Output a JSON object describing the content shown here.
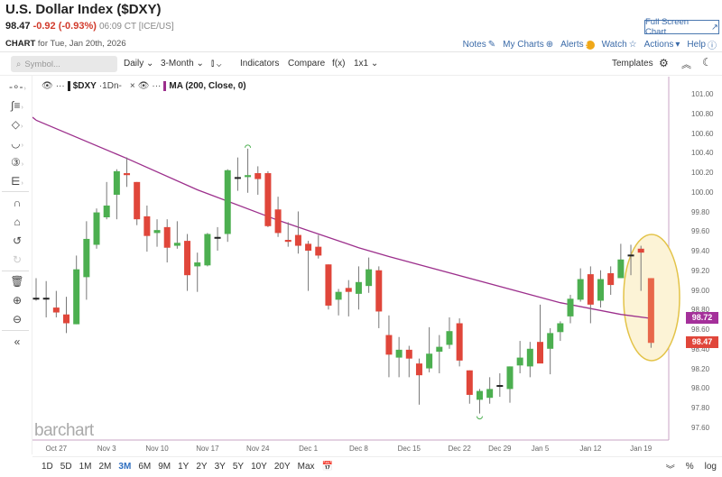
{
  "header": {
    "title": "U.S. Dollar Index ($DXY)",
    "last": "98.47",
    "change": "-0.92 (-0.93%)",
    "time": "06:09 CT [ICE/US]",
    "chart_label": "CHART",
    "chart_date": "for Tue, Jan 20th, 2026",
    "fullscreen_label": "Full Screen Chart",
    "links": {
      "notes": "Notes",
      "my_charts": "My Charts",
      "alerts": "Alerts",
      "watch": "Watch",
      "actions": "Actions",
      "help": "Help"
    }
  },
  "toolbar": {
    "symbol_placeholder": "Symbol...",
    "interval": "Daily",
    "period": "3-Month",
    "indicators": "Indicators",
    "compare": "Compare",
    "fx": "f(x)",
    "layout": "1x1",
    "templates": "Templates"
  },
  "legend": {
    "symbol": "$DXY",
    "symbol_suffix": "·1Dn-",
    "ma": "MA (200, Close, 0)"
  },
  "colors": {
    "up": "#4caf50",
    "down": "#e0463a",
    "doji": "#222222",
    "ma": "#9c2f8c",
    "highlight_fill": "#fcf3d6",
    "highlight_stroke": "#e3c348",
    "last_badge": "#e0463a",
    "ma_badge": "#a4309a"
  },
  "chart_data": {
    "type": "candlestick",
    "ylim": [
      97.5,
      101.2
    ],
    "y_ticks": [
      "101.00",
      "100.80",
      "100.60",
      "100.40",
      "100.20",
      "100.00",
      "99.80",
      "99.60",
      "99.40",
      "99.20",
      "99.00",
      "98.80",
      "98.60",
      "98.40",
      "98.20",
      "98.00",
      "97.80",
      "97.60"
    ],
    "x_ticks": [
      {
        "label": "Oct 27",
        "index": 2
      },
      {
        "label": "Nov 3",
        "index": 7
      },
      {
        "label": "Nov 10",
        "index": 12
      },
      {
        "label": "Nov 17",
        "index": 17
      },
      {
        "label": "Nov 24",
        "index": 22
      },
      {
        "label": "Dec 1",
        "index": 27
      },
      {
        "label": "Dec 8",
        "index": 32
      },
      {
        "label": "Dec 15",
        "index": 37
      },
      {
        "label": "Dec 22",
        "index": 42
      },
      {
        "label": "Dec 29",
        "index": 46
      },
      {
        "label": "Jan 5",
        "index": 50
      },
      {
        "label": "Jan 12",
        "index": 55
      },
      {
        "label": "Jan 19",
        "index": 60
      }
    ],
    "candles": [
      [
        98.93,
        99.13,
        98.9,
        98.93
      ],
      [
        98.93,
        99.1,
        98.73,
        98.93
      ],
      [
        98.83,
        99.0,
        98.73,
        98.78
      ],
      [
        98.76,
        98.94,
        98.57,
        98.67
      ],
      [
        98.66,
        99.36,
        98.66,
        99.22
      ],
      [
        99.14,
        99.71,
        98.91,
        99.53
      ],
      [
        99.47,
        99.84,
        99.43,
        99.8
      ],
      [
        99.75,
        100.11,
        99.73,
        99.87
      ],
      [
        99.98,
        100.24,
        99.73,
        100.22
      ],
      [
        100.2,
        100.36,
        100.06,
        100.18
      ],
      [
        100.11,
        100.11,
        99.67,
        99.73
      ],
      [
        99.76,
        99.87,
        99.4,
        99.56
      ],
      [
        99.59,
        99.73,
        99.45,
        99.62
      ],
      [
        99.65,
        99.73,
        99.29,
        99.44
      ],
      [
        99.46,
        99.71,
        99.43,
        99.49
      ],
      [
        99.51,
        99.58,
        99.0,
        99.16
      ],
      [
        99.25,
        99.39,
        98.99,
        99.29
      ],
      [
        99.26,
        99.59,
        99.25,
        99.58
      ],
      [
        99.55,
        99.65,
        99.41,
        99.55
      ],
      [
        99.58,
        100.24,
        99.5,
        100.23
      ],
      [
        100.16,
        100.36,
        100.02,
        100.16
      ],
      [
        100.16,
        100.45,
        100.0,
        100.18
      ],
      [
        100.2,
        100.27,
        99.98,
        100.14
      ],
      [
        100.2,
        100.22,
        99.65,
        99.66
      ],
      [
        99.83,
        99.96,
        99.55,
        99.59
      ],
      [
        99.52,
        99.7,
        99.45,
        99.5
      ],
      [
        99.57,
        99.81,
        99.38,
        99.46
      ],
      [
        99.48,
        99.51,
        99.0,
        99.41
      ],
      [
        99.45,
        99.57,
        99.33,
        99.36
      ],
      [
        99.27,
        99.27,
        98.81,
        98.85
      ],
      [
        98.91,
        99.02,
        98.75,
        98.99
      ],
      [
        99.03,
        99.11,
        98.74,
        98.99
      ],
      [
        98.97,
        99.25,
        98.81,
        99.09
      ],
      [
        99.05,
        99.34,
        98.98,
        99.22
      ],
      [
        99.21,
        99.25,
        98.62,
        98.79
      ],
      [
        98.55,
        98.75,
        98.12,
        98.35
      ],
      [
        98.32,
        98.53,
        98.12,
        98.4
      ],
      [
        98.4,
        98.44,
        98.12,
        98.31
      ],
      [
        98.26,
        98.31,
        97.84,
        98.14
      ],
      [
        98.21,
        98.63,
        98.17,
        98.36
      ],
      [
        98.38,
        98.55,
        98.16,
        98.43
      ],
      [
        98.45,
        98.73,
        98.41,
        98.59
      ],
      [
        98.67,
        98.72,
        98.23,
        98.29
      ],
      [
        98.19,
        98.19,
        97.85,
        97.94
      ],
      [
        97.89,
        98.0,
        97.75,
        97.98
      ],
      [
        97.91,
        98.12,
        97.85,
        98.0
      ],
      [
        98.04,
        98.16,
        97.92,
        98.04
      ],
      [
        98.0,
        98.23,
        97.86,
        98.23
      ],
      [
        98.24,
        98.49,
        98.16,
        98.32
      ],
      [
        98.23,
        98.48,
        98.12,
        98.41
      ],
      [
        98.48,
        98.86,
        98.27,
        98.26
      ],
      [
        98.41,
        98.62,
        98.15,
        98.57
      ],
      [
        98.58,
        98.69,
        98.49,
        98.67
      ],
      [
        98.74,
        98.96,
        98.67,
        98.92
      ],
      [
        98.91,
        99.23,
        98.89,
        99.12
      ],
      [
        99.17,
        99.25,
        98.67,
        98.86
      ],
      [
        98.9,
        99.21,
        98.83,
        99.12
      ],
      [
        99.18,
        99.25,
        98.96,
        99.06
      ],
      [
        99.13,
        99.48,
        99.13,
        99.32
      ],
      [
        99.37,
        99.47,
        99.16,
        99.37
      ],
      [
        99.43,
        99.46,
        99.0,
        99.39
      ],
      [
        99.13,
        99.13,
        98.42,
        98.47
      ]
    ],
    "ma_200": [
      [
        0,
        100.74
      ],
      [
        9,
        100.35
      ],
      [
        16,
        100.03
      ],
      [
        24,
        99.72
      ],
      [
        32,
        99.44
      ],
      [
        35,
        99.35
      ],
      [
        52,
        98.88
      ],
      [
        58,
        98.76
      ],
      [
        61,
        98.72
      ]
    ],
    "last_price": "98.47",
    "ma_value": "98.72"
  },
  "left_tools": [
    "crosshair",
    "trend-lines",
    "shapes",
    "curves",
    "annotations",
    "patterns",
    "magnet",
    "lock",
    "undo",
    "redo",
    "delete",
    "zoom-in",
    "zoom-out",
    "collapse"
  ],
  "watermark": "barchart",
  "ranges": [
    "1D",
    "5D",
    "1M",
    "2M",
    "3M",
    "6M",
    "9M",
    "1Y",
    "2Y",
    "3Y",
    "5Y",
    "10Y",
    "20Y",
    "Max"
  ],
  "active_range": "3M",
  "bottom": {
    "percent": "%",
    "log": "log"
  }
}
